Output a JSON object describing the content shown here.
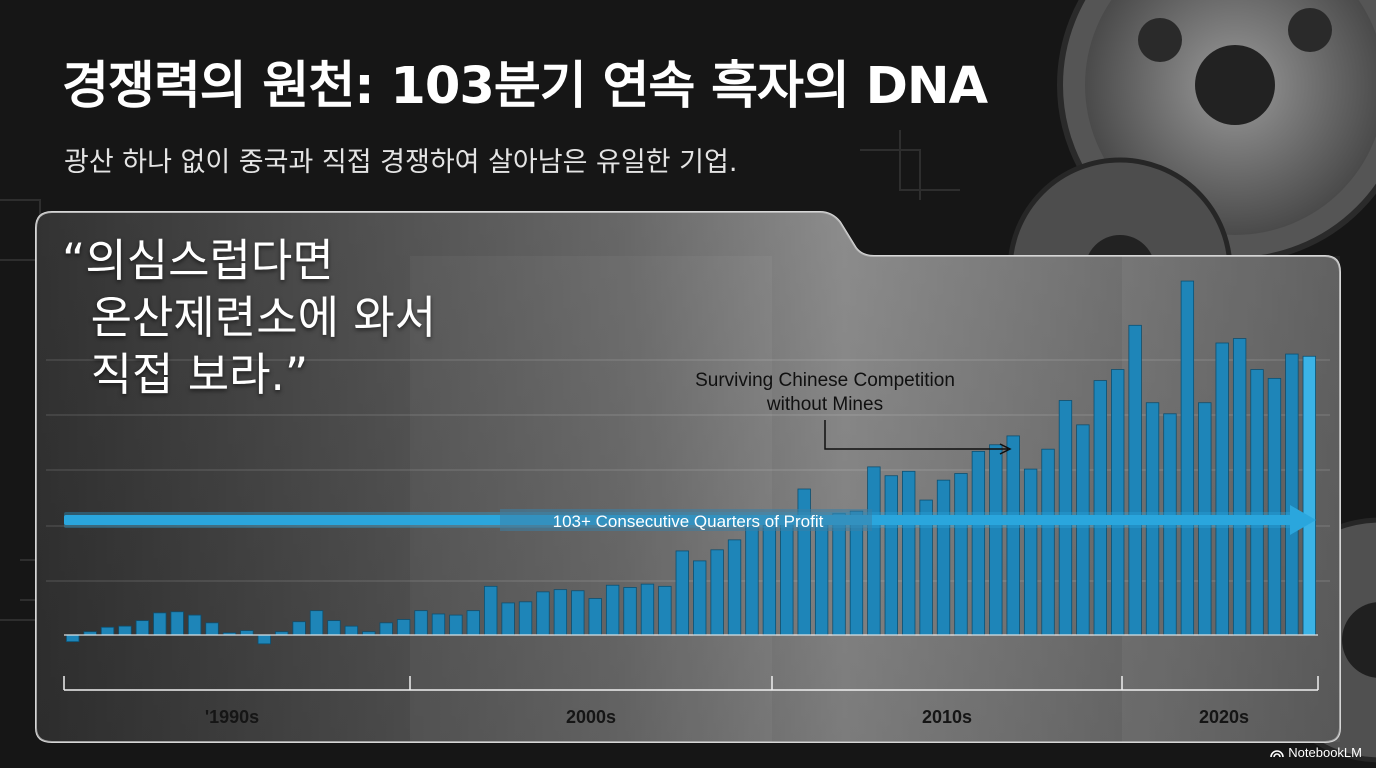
{
  "header": {
    "title": "경쟁력의 원천: 103분기 연속 흑자의 DNA",
    "subtitle": "광산 하나 없이 중국과 직접 경쟁하여 살아남은 유일한 기업."
  },
  "quote": {
    "text": "“의심스럽다면\n  온산제련소에 와서\n  직접 보라.”"
  },
  "chart_data": {
    "type": "bar",
    "x_axis_labels": [
      "'1990s",
      "2000s",
      "2010s",
      "2020s"
    ],
    "values": [
      -3,
      1.5,
      3.5,
      4,
      6.5,
      10,
      10.5,
      9,
      5.5,
      1,
      2,
      -4,
      1.5,
      6,
      11,
      6.5,
      4,
      1.5,
      5.5,
      7,
      11,
      9.5,
      9,
      11,
      22,
      14.5,
      15,
      19.5,
      20.5,
      20,
      16.5,
      22.5,
      21.5,
      23,
      22,
      38,
      33.5,
      38.5,
      43,
      49,
      49.5,
      52,
      66,
      50.5,
      55,
      56,
      76,
      72,
      74,
      61,
      70,
      73,
      83,
      86,
      90,
      75,
      84,
      106,
      95,
      115,
      120,
      140,
      105,
      100,
      160,
      105,
      132,
      134,
      120,
      116,
      127,
      126
    ],
    "ylim": [
      -8,
      165
    ],
    "colors": {
      "bar": "#1e85b8",
      "bar_highlight": "#3bb3e6",
      "arrow": "#2aa6dd"
    },
    "annotations": {
      "streak_arrow_label": "103+ Consecutive Quarters of Profit",
      "callout_line1": "Surviving Chinese Competition",
      "callout_line2": "without Mines"
    }
  },
  "brand": {
    "name": "NotebookLM",
    "icon": "notebooklm-logo-icon"
  }
}
